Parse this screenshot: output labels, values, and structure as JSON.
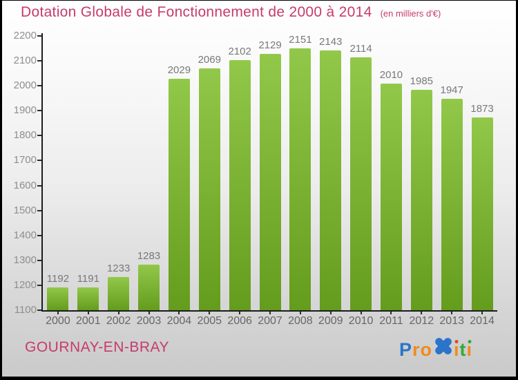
{
  "title": {
    "text": "Dotation Globale de Fonctionnement de 2000 à 2014",
    "subtitle": "(en milliers d'€)"
  },
  "footer": {
    "location": "GOURNAY-EN-BRAY"
  },
  "logo": {
    "name": "Proxiti",
    "letters": [
      {
        "ch": "P",
        "color": "#2b74c9"
      },
      {
        "ch": "r",
        "color": "#f28a1c"
      },
      {
        "ch": "o",
        "color": "#f28a1c"
      },
      {
        "type": "x-mark",
        "color": "#2b74c9"
      },
      {
        "ch": "i",
        "color": "#f28a1c",
        "dot_color": "#e04726"
      },
      {
        "ch": "t",
        "color": "#35a936"
      },
      {
        "ch": "i",
        "color": "#f28a1c",
        "dot_color": "#35a936"
      }
    ]
  },
  "colors": {
    "accent_pink": "#c73a6d",
    "bar_top": "#92c84a",
    "bar_bottom": "#649c1d",
    "axis": "#1c1c1c",
    "tick_label": "#8e8e8e",
    "value_label": "#787878",
    "year_label": "#666666"
  },
  "chart_data": {
    "type": "bar",
    "title": "Dotation Globale de Fonctionnement de 2000 à 2014",
    "subtitle": "(en milliers d'€)",
    "xlabel": "",
    "ylabel": "",
    "categories": [
      "2000",
      "2001",
      "2002",
      "2003",
      "2004",
      "2005",
      "2006",
      "2007",
      "2008",
      "2009",
      "2010",
      "2011",
      "2012",
      "2013",
      "2014"
    ],
    "values": [
      1192,
      1191,
      1233,
      1283,
      2029,
      2069,
      2102,
      2129,
      2151,
      2143,
      2114,
      2010,
      1985,
      1947,
      1873
    ],
    "ylim": [
      1100,
      2200
    ],
    "ytick_step": 100,
    "grid": false,
    "legend_position": "none",
    "bar_color_top": "#92c84a",
    "bar_color_bottom": "#649c1d"
  }
}
